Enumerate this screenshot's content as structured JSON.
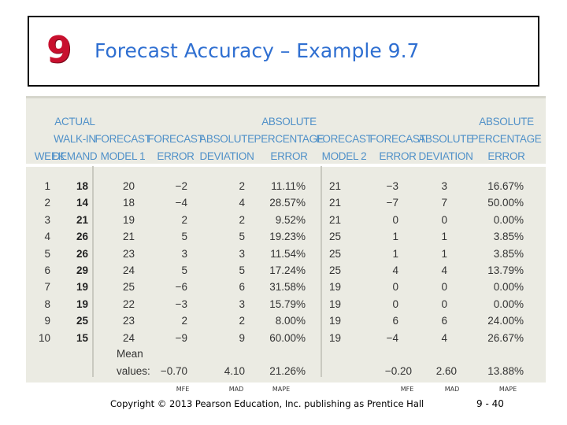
{
  "slide": {
    "chapter_number": "9",
    "title": "Forecast Accuracy – Example 9.7",
    "footer": "Copyright © 2013 Pearson Education, Inc. publishing as Prentice Hall",
    "page_number": "9 - 40"
  },
  "table": {
    "headers": [
      [
        "",
        "",
        "WEEK"
      ],
      [
        "ACTUAL",
        "WALK-IN",
        "DEMAND"
      ],
      [
        "",
        "FORECAST",
        "MODEL 1"
      ],
      [
        "",
        "FORECAST",
        "ERROR"
      ],
      [
        "",
        "ABSOLUTE",
        "DEVIATION"
      ],
      [
        "ABSOLUTE",
        "PERCENTAGE",
        "ERROR"
      ],
      [
        "",
        "FORECAST",
        "MODEL 2"
      ],
      [
        "",
        "FORECAST",
        "ERROR"
      ],
      [
        "",
        "ABSOLUTE",
        "DEVIATION"
      ],
      [
        "ABSOLUTE",
        "PERCENTAGE",
        "ERROR"
      ]
    ],
    "rows": [
      [
        "1",
        "18",
        "20",
        "−2",
        "2",
        "11.11%",
        "21",
        "−3",
        "3",
        "16.67%"
      ],
      [
        "2",
        "14",
        "18",
        "−4",
        "4",
        "28.57%",
        "21",
        "−7",
        "7",
        "50.00%"
      ],
      [
        "3",
        "21",
        "19",
        "2",
        "2",
        "9.52%",
        "21",
        "0",
        "0",
        "0.00%"
      ],
      [
        "4",
        "26",
        "21",
        "5",
        "5",
        "19.23%",
        "25",
        "1",
        "1",
        "3.85%"
      ],
      [
        "5",
        "26",
        "23",
        "3",
        "3",
        "11.54%",
        "25",
        "1",
        "1",
        "3.85%"
      ],
      [
        "6",
        "29",
        "24",
        "5",
        "5",
        "17.24%",
        "25",
        "4",
        "4",
        "13.79%"
      ],
      [
        "7",
        "19",
        "25",
        "−6",
        "6",
        "31.58%",
        "19",
        "0",
        "0",
        "0.00%"
      ],
      [
        "8",
        "19",
        "22",
        "−3",
        "3",
        "15.79%",
        "19",
        "0",
        "0",
        "0.00%"
      ],
      [
        "9",
        "25",
        "23",
        "2",
        "2",
        "8.00%",
        "19",
        "6",
        "6",
        "24.00%"
      ],
      [
        "10",
        "15",
        "24",
        "−9",
        "9",
        "60.00%",
        "19",
        "−4",
        "4",
        "26.67%"
      ]
    ],
    "summary_label_1": "Mean",
    "summary_label_2": "values:",
    "summary": {
      "mfe1": "−0.70",
      "mad1": "4.10",
      "mape1": "21.26%",
      "mfe2": "−0.20",
      "mad2": "2.60",
      "mape2": "13.88%"
    },
    "mini_labels": [
      "MFE",
      "MAD",
      "MAPE",
      "MFE",
      "MAD",
      "MAPE"
    ]
  }
}
